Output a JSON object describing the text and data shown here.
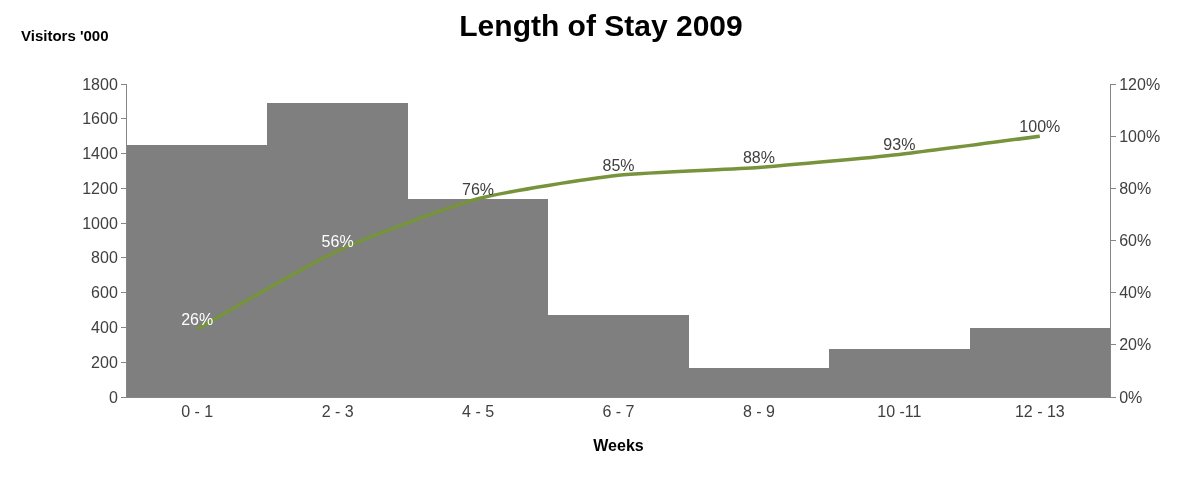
{
  "chart_data": {
    "type": "bar",
    "title": "Length of Stay 2009",
    "xlabel": "Weeks",
    "ylabel": "Visitors '000",
    "categories": [
      "0 - 1",
      "2 - 3",
      "4 - 5",
      "6 - 7",
      "8 - 9",
      "10 -11",
      "12 - 13"
    ],
    "series": [
      {
        "color": "#7f7f7f",
        "values": [
          1450,
          1690,
          1140,
          470,
          165,
          275,
          395
        ]
      },
      {
        "type": "line",
        "axis": "y2",
        "color": "#77933c",
        "values": [
          26,
          56,
          76,
          85,
          88,
          93,
          100
        ],
        "value_labels": [
          "26%",
          "56%",
          "76%",
          "85%",
          "88%",
          "93%",
          "100%"
        ]
      }
    ],
    "ylim": [
      0,
      1800
    ],
    "yticks": [
      0,
      200,
      400,
      600,
      800,
      1000,
      1200,
      1400,
      1600,
      1800
    ],
    "y2lim": [
      0,
      120
    ],
    "y2ticks": [
      {
        "value": 0,
        "label": "0%"
      },
      {
        "value": 20,
        "label": "20%"
      },
      {
        "value": 40,
        "label": "40%"
      },
      {
        "value": 60,
        "label": "60%"
      },
      {
        "value": 80,
        "label": "80%"
      },
      {
        "value": 100,
        "label": "100%"
      },
      {
        "value": 120,
        "label": "120%"
      }
    ],
    "grid": false,
    "marker": "none",
    "line_style": "solid"
  }
}
